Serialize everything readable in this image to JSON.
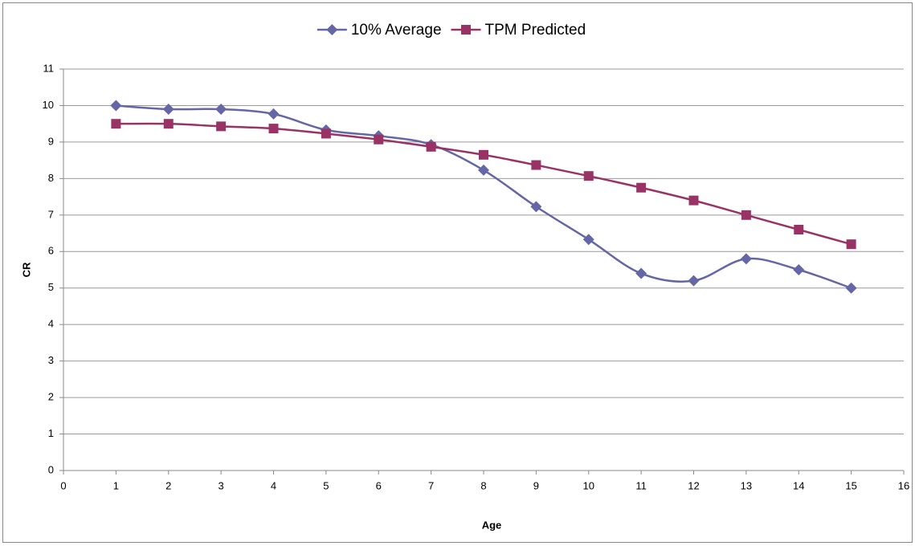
{
  "chart_data": {
    "type": "line",
    "smooth": true,
    "legend": "top",
    "grid": true,
    "xlabel": "Age",
    "ylabel": "CR",
    "x": [
      1,
      2,
      3,
      4,
      5,
      6,
      7,
      8,
      9,
      10,
      11,
      12,
      13,
      14,
      15
    ],
    "series": [
      {
        "name": "10% Average",
        "color": "#6466a6",
        "marker": "diamond",
        "values": [
          10,
          9.9,
          9.9,
          9.77,
          9.33,
          9.17,
          8.93,
          8.23,
          7.23,
          6.33,
          5.4,
          5.2,
          5.8,
          5.5,
          5.0
        ]
      },
      {
        "name": "TPM Predicted",
        "color": "#993366",
        "marker": "square",
        "values": [
          9.5,
          9.5,
          9.43,
          9.37,
          9.23,
          9.07,
          8.87,
          8.65,
          8.37,
          8.07,
          7.75,
          7.4,
          7.0,
          6.6,
          6.2
        ]
      }
    ],
    "xlim": [
      0,
      16
    ],
    "xticks": [
      0,
      1,
      2,
      3,
      4,
      5,
      6,
      7,
      8,
      9,
      10,
      11,
      12,
      13,
      14,
      15,
      16
    ],
    "ylim": [
      0,
      11
    ],
    "yticks": [
      0,
      1,
      2,
      3,
      4,
      5,
      6,
      7,
      8,
      9,
      10,
      11
    ]
  }
}
